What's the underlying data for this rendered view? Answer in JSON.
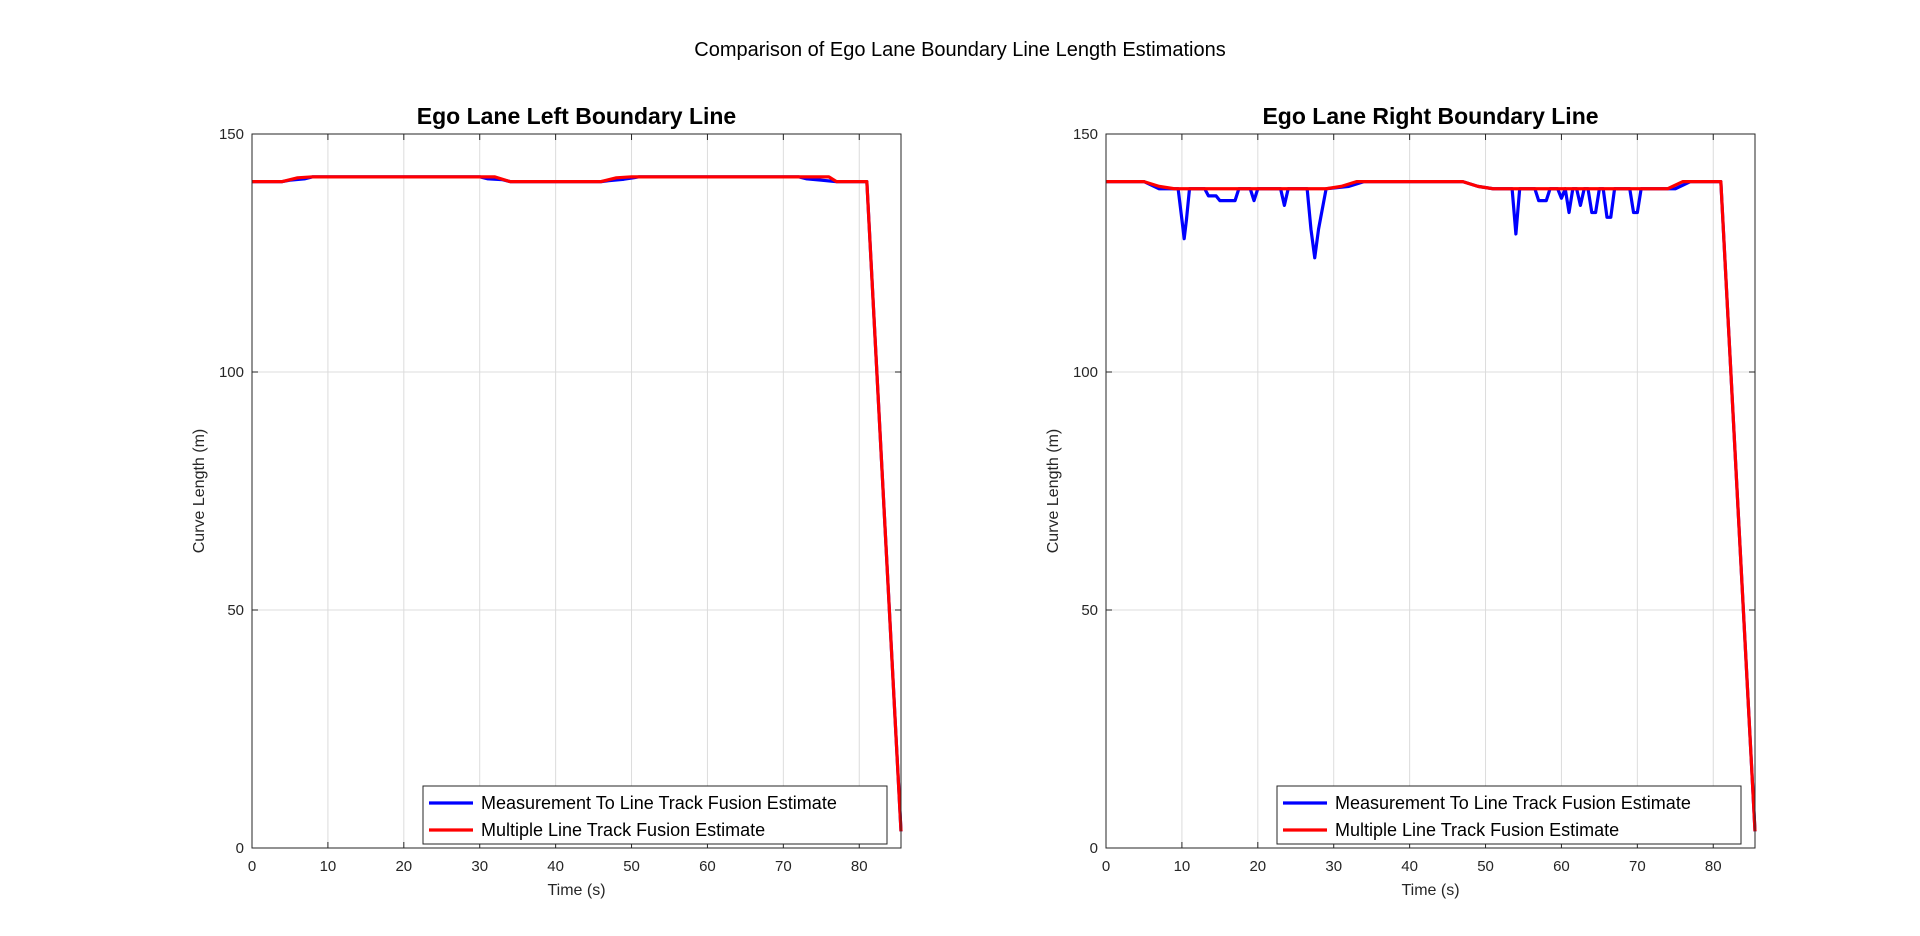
{
  "figure": {
    "title": "Comparison of Ego Lane Boundary Line Length Estimations"
  },
  "colors": {
    "measurement": "#0000ff",
    "multiple": "#ff0000",
    "grid": "#dcdcdc",
    "axis": "#262626"
  },
  "chart_data": [
    {
      "type": "line",
      "title": "Ego Lane Left Boundary Line",
      "xlabel": "Time (s)",
      "ylabel": "Curve Length (m)",
      "xlim": [
        0,
        85.5
      ],
      "ylim": [
        0,
        150
      ],
      "xticks": [
        "0",
        "10",
        "20",
        "30",
        "40",
        "50",
        "60",
        "70",
        "80"
      ],
      "yticks": [
        "0",
        "50",
        "100",
        "150"
      ],
      "grid": true,
      "legend_position": "bottom-right",
      "series": [
        {
          "name": "Measurement To Line Track Fusion Estimate",
          "color": "#0000ff",
          "x": [
            0,
            4,
            5,
            7,
            8,
            30,
            31,
            33,
            34,
            46,
            47,
            49,
            51,
            72,
            73,
            75,
            77,
            81,
            85.5
          ],
          "y": [
            140,
            140,
            140.3,
            140.6,
            141,
            141,
            140.6,
            140.4,
            140,
            140,
            140.2,
            140.5,
            141,
            141,
            140.6,
            140.3,
            140,
            140,
            3.5
          ]
        },
        {
          "name": "Multiple Line Track Fusion Estimate",
          "color": "#ff0000",
          "x": [
            0,
            4,
            6,
            8,
            30,
            32,
            34,
            46,
            48,
            50,
            51,
            72,
            74,
            76,
            77,
            81,
            85.5
          ],
          "y": [
            140,
            140,
            140.8,
            141,
            141,
            141,
            140,
            140,
            140.8,
            141,
            141,
            141,
            141,
            141,
            140,
            140,
            3.5
          ]
        }
      ]
    },
    {
      "type": "line",
      "title": "Ego Lane Right Boundary Line",
      "xlabel": "Time (s)",
      "ylabel": "Curve Length (m)",
      "xlim": [
        0,
        85.5
      ],
      "ylim": [
        0,
        150
      ],
      "xticks": [
        "0",
        "10",
        "20",
        "30",
        "40",
        "50",
        "60",
        "70",
        "80"
      ],
      "yticks": [
        "0",
        "50",
        "100",
        "150"
      ],
      "grid": true,
      "legend_position": "bottom-right",
      "series": [
        {
          "name": "Measurement To Line Track Fusion Estimate",
          "color": "#0000ff",
          "x": [
            0,
            5,
            7,
            9.5,
            10,
            10.3,
            10.6,
            11,
            13,
            13.5,
            14.5,
            15,
            17,
            17.5,
            19,
            19.5,
            20,
            23,
            23.5,
            24,
            24.5,
            26.5,
            27,
            27.5,
            28,
            29,
            32,
            34,
            47,
            49,
            51,
            53.5,
            54,
            54.5,
            55,
            56.5,
            57,
            58,
            58.5,
            59.5,
            60,
            60.5,
            61,
            61.5,
            62,
            62.5,
            63,
            63.5,
            64,
            64.5,
            65,
            65.5,
            66,
            66.5,
            67,
            67.5,
            68,
            69,
            69.5,
            70,
            70.5,
            75,
            77,
            81,
            85.5
          ],
          "y": [
            140,
            140,
            138.5,
            138.5,
            132,
            128,
            132,
            138.5,
            138.5,
            137,
            137,
            136,
            136,
            138.5,
            138.5,
            136,
            138.5,
            138.5,
            135,
            138.5,
            138.5,
            138.5,
            130,
            124,
            130,
            138.5,
            139,
            140,
            140,
            139,
            138.5,
            138.5,
            129,
            138.5,
            138.5,
            138.5,
            136,
            136,
            138.5,
            138.5,
            136.5,
            138.5,
            133.5,
            138.5,
            138.5,
            135,
            138.5,
            138.5,
            133.5,
            133.5,
            138.5,
            138.5,
            132.5,
            132.5,
            138.5,
            138.5,
            138.5,
            138.5,
            133.5,
            133.5,
            138.5,
            138.5,
            140,
            140,
            3.5
          ]
        },
        {
          "name": "Multiple Line Track Fusion Estimate",
          "color": "#ff0000",
          "x": [
            0,
            5,
            7,
            9,
            13,
            19,
            26,
            29,
            31,
            33,
            47,
            49,
            51,
            74,
            76,
            81,
            85.5
          ],
          "y": [
            140,
            140,
            139,
            138.5,
            138.5,
            138.5,
            138.5,
            138.5,
            139,
            140,
            140,
            139,
            138.5,
            138.5,
            140,
            140,
            3.5
          ]
        }
      ]
    }
  ]
}
